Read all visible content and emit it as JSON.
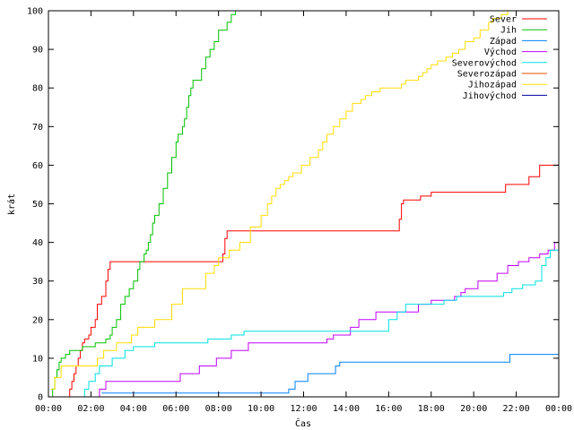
{
  "chart_data": {
    "type": "line",
    "step": true,
    "title": "",
    "xlabel": "Čas",
    "ylabel": "krát",
    "xlim": [
      0,
      24
    ],
    "ylim": [
      0,
      100
    ],
    "x_ticks": [
      {
        "value": 0,
        "label": "00:00"
      },
      {
        "value": 2,
        "label": "02:00"
      },
      {
        "value": 4,
        "label": "04:00"
      },
      {
        "value": 6,
        "label": "06:00"
      },
      {
        "value": 8,
        "label": "08:00"
      },
      {
        "value": 10,
        "label": "10:00"
      },
      {
        "value": 12,
        "label": "12:00"
      },
      {
        "value": 14,
        "label": "14:00"
      },
      {
        "value": 16,
        "label": "16:00"
      },
      {
        "value": 18,
        "label": "18:00"
      },
      {
        "value": 20,
        "label": "20:00"
      },
      {
        "value": 22,
        "label": "22:00"
      },
      {
        "value": 24,
        "label": "00:00"
      }
    ],
    "y_ticks": [
      0,
      10,
      20,
      30,
      40,
      50,
      60,
      70,
      80,
      90,
      100
    ],
    "grid": false,
    "legend_position": "top-right",
    "series": [
      {
        "name": "Sever",
        "color": "#ff0000",
        "x": [
          0.9,
          1.0,
          1.1,
          1.2,
          1.3,
          1.4,
          1.5,
          1.6,
          1.7,
          1.8,
          1.9,
          2.0,
          2.2,
          2.3,
          2.4,
          2.5,
          2.7,
          2.8,
          2.9,
          3.0,
          8.2,
          8.3,
          8.4,
          16.5,
          16.6,
          16.7,
          17.5,
          18.0,
          21.5,
          22.0,
          22.6,
          23.1,
          24.0
        ],
        "y": [
          0,
          2,
          4,
          6,
          8,
          10,
          12,
          14,
          15,
          15,
          16,
          18,
          20,
          24,
          24,
          26,
          30,
          33,
          35,
          35,
          37,
          41,
          43,
          46,
          50,
          51,
          52,
          53,
          55,
          55,
          57,
          60,
          60
        ]
      },
      {
        "name": "Jih",
        "color": "#00c000",
        "x": [
          0,
          0.2,
          0.3,
          0.4,
          0.5,
          0.6,
          0.8,
          1.0,
          1.6,
          2.2,
          2.7,
          2.9,
          3.0,
          3.2,
          3.4,
          3.6,
          3.8,
          4.0,
          4.2,
          4.3,
          4.4,
          4.5,
          4.6,
          4.7,
          4.8,
          4.9,
          5.0,
          5.2,
          5.4,
          5.6,
          5.8,
          6.0,
          6.1,
          6.2,
          6.3,
          6.4,
          6.5,
          6.6,
          6.7,
          6.8,
          7.0,
          7.2,
          7.4,
          7.6,
          7.8,
          8.0,
          8.4,
          8.6,
          8.8,
          9.0,
          9.2,
          9.4,
          9.6
        ],
        "y": [
          0,
          2,
          5,
          7,
          9,
          10,
          11,
          12,
          13,
          14,
          15,
          16,
          18,
          20,
          24,
          26,
          28,
          30,
          33,
          35,
          35,
          37,
          38,
          40,
          42,
          45,
          47,
          50,
          54,
          58,
          62,
          66,
          68,
          68,
          70,
          72,
          75,
          78,
          80,
          82,
          82,
          85,
          88,
          90,
          92,
          95,
          97,
          99,
          100,
          100,
          100,
          100,
          100
        ]
      },
      {
        "name": "Západ",
        "color": "#0080ff",
        "x": [
          2.5,
          11.3,
          11.6,
          12.2,
          13.5,
          13.7,
          21.5,
          21.7,
          24.0
        ],
        "y": [
          1,
          2,
          4,
          6,
          8,
          9,
          9,
          11,
          11
        ]
      },
      {
        "name": "Východ",
        "color": "#c000ff",
        "x": [
          2.1,
          2.4,
          2.7,
          6.2,
          6.6,
          7.1,
          7.5,
          7.9,
          8.3,
          8.6,
          9.4,
          9.9,
          13.1,
          13.4,
          13.8,
          14.2,
          14.6,
          15.4,
          16.1,
          17.4,
          18.0,
          18.6,
          19.1,
          19.4,
          19.6,
          20.2,
          20.8,
          21.1,
          21.6,
          22.1,
          22.6,
          23.1,
          23.5,
          23.8,
          24.0
        ],
        "y": [
          0,
          2,
          4,
          6,
          6,
          8,
          8,
          10,
          10,
          12,
          14,
          14,
          15,
          16,
          16,
          18,
          20,
          22,
          22,
          24,
          25,
          25,
          26,
          27,
          28,
          30,
          30,
          32,
          34,
          35,
          36,
          37,
          38,
          40,
          42
        ]
      },
      {
        "name": "Severovýchod",
        "color": "#00e0e0",
        "x": [
          1.5,
          1.7,
          1.9,
          2.2,
          2.4,
          3.0,
          3.4,
          3.6,
          4.0,
          5.0,
          6.0,
          7.5,
          8.2,
          8.6,
          9.0,
          9.2,
          15.0,
          16.0,
          16.4,
          16.8,
          17.8,
          18.6,
          19.2,
          20.2,
          21.0,
          21.4,
          21.8,
          22.3,
          22.9,
          23.2,
          23.4,
          23.6,
          24.0
        ],
        "y": [
          0,
          2,
          4,
          6,
          8,
          10,
          10,
          12,
          13,
          14,
          14,
          15,
          15,
          16,
          16,
          17,
          17,
          20,
          22,
          24,
          24,
          25,
          26,
          26,
          26,
          27,
          28,
          29,
          30,
          34,
          36,
          38,
          40
        ]
      },
      {
        "name": "Severozápad",
        "color": "#e05000",
        "x": [],
        "y": []
      },
      {
        "name": "Jihozápad",
        "color": "#ffdd00",
        "x": [
          0.1,
          0.3,
          0.6,
          2.3,
          2.6,
          3.2,
          3.9,
          4.2,
          5.0,
          5.8,
          6.3,
          7.4,
          7.8,
          8.0,
          8.5,
          9.0,
          9.5,
          10.0,
          10.3,
          10.5,
          10.7,
          10.9,
          11.1,
          11.3,
          11.5,
          11.9,
          12.3,
          12.7,
          12.9,
          13.1,
          13.4,
          13.7,
          14.0,
          14.3,
          14.5,
          14.7,
          14.9,
          15.2,
          15.6,
          16.0,
          16.6,
          16.8,
          17.4,
          17.6,
          17.8,
          18.0,
          18.3,
          18.7,
          19.0,
          19.3,
          19.6,
          20.0,
          20.3,
          20.7,
          20.9,
          21.3,
          21.6
        ],
        "y": [
          2,
          5,
          8,
          10,
          12,
          14,
          16,
          18,
          20,
          24,
          28,
          32,
          34,
          36,
          38,
          40,
          44,
          47,
          50,
          52,
          54,
          55,
          56,
          57,
          58,
          60,
          62,
          64,
          66,
          68,
          70,
          72,
          74,
          76,
          76,
          77,
          78,
          79,
          80,
          80,
          81,
          82,
          83,
          84,
          85,
          86,
          87,
          88,
          89,
          90,
          92,
          93,
          95,
          97,
          98,
          99,
          100
        ]
      },
      {
        "name": "Jihovýchod",
        "color": "#0000a0",
        "x": [],
        "y": []
      }
    ]
  }
}
